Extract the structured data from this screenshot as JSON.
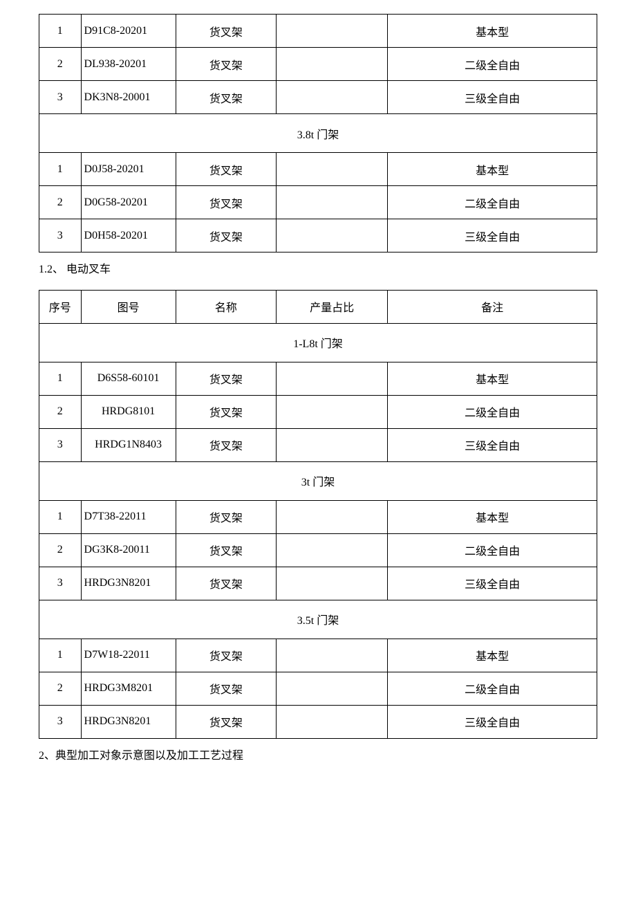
{
  "table1": {
    "rows": [
      {
        "n": "1",
        "code": "D91C8-20201",
        "name": "货叉架",
        "ratio": "",
        "note": "基本型"
      },
      {
        "n": "2",
        "code": "DL938-20201",
        "name": "货叉架",
        "ratio": "",
        "note": "二级全自由"
      },
      {
        "n": "3",
        "code": "DK3N8-20001",
        "name": "货叉架",
        "ratio": "",
        "note": "三级全自由"
      }
    ],
    "section1": "3.8t 门架",
    "rows2": [
      {
        "n": "1",
        "code": "D0J58-20201",
        "name": "货叉架",
        "ratio": "",
        "note": "基本型"
      },
      {
        "n": "2",
        "code": "D0G58-20201",
        "name": "货叉架",
        "ratio": "",
        "note": "二级全自由"
      },
      {
        "n": "3",
        "code": "D0H58-20201",
        "name": "货叉架",
        "ratio": "",
        "note": "三级全自由"
      }
    ]
  },
  "para1": "1.2、 电动叉车",
  "table2": {
    "head": {
      "c1": "序号",
      "c2": "图号",
      "c3": "名称",
      "c4": "产量占比",
      "c5": "备注"
    },
    "sectionA": "1-L8t 门架",
    "rowsA": [
      {
        "n": "1",
        "code": "D6S58-60101",
        "name": "货叉架",
        "ratio": "",
        "note": "基本型",
        "codeClass": "c"
      },
      {
        "n": "2",
        "code": "HRDG8101",
        "name": "货叉架",
        "ratio": "",
        "note": "二级全自由",
        "codeClass": "c"
      },
      {
        "n": "3",
        "code": "HRDG1N8403",
        "name": "货叉架",
        "ratio": "",
        "note": "三级全自由",
        "codeClass": "c"
      }
    ],
    "sectionB": "3t 门架",
    "rowsB": [
      {
        "n": "1",
        "code": "D7T38-22011",
        "name": "货叉架",
        "ratio": "",
        "note": "基本型"
      },
      {
        "n": "2",
        "code": "DG3K8-20011",
        "name": "货叉架",
        "ratio": "",
        "note": "二级全自由"
      },
      {
        "n": "3",
        "code": "HRDG3N8201",
        "name": "货叉架",
        "ratio": "",
        "note": "三级全自由"
      }
    ],
    "sectionC": "3.5t 门架",
    "rowsC": [
      {
        "n": "1",
        "code": "D7W18-22011",
        "name": "货叉架",
        "ratio": "",
        "note": "基本型"
      },
      {
        "n": "2",
        "code": "HRDG3M8201",
        "name": "货叉架",
        "ratio": "",
        "note": "二级全自由"
      },
      {
        "n": "3",
        "code": "HRDG3N8201",
        "name": "货叉架",
        "ratio": "",
        "note": "三级全自由"
      }
    ]
  },
  "para2": "2、典型加工对象示意图以及加工工艺过程"
}
